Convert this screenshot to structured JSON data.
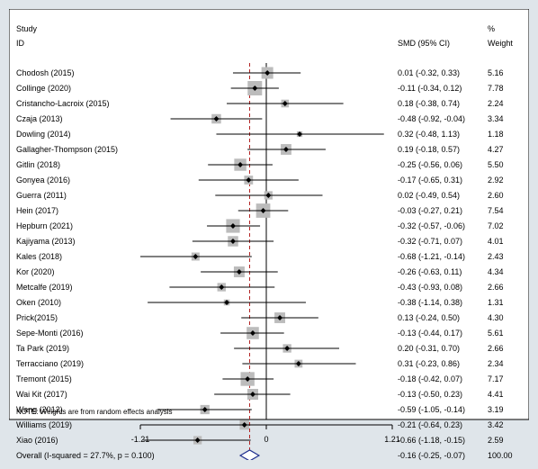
{
  "chart_data": {
    "type": "forest",
    "header": {
      "study_label_line1": "Study",
      "study_label_line2": "ID",
      "effect_label": "SMD (95% CI)",
      "weight_label_line1": "%",
      "weight_label_line2": "Weight"
    },
    "studies": [
      {
        "name": "Chodosh (2015)",
        "smd": 0.01,
        "lower": -0.32,
        "upper": 0.33,
        "ci_text": "0.01 (-0.32, 0.33)",
        "weight": 5.16,
        "weight_text": "5.16"
      },
      {
        "name": "Collinge (2020)",
        "smd": -0.11,
        "lower": -0.34,
        "upper": 0.12,
        "ci_text": "-0.11 (-0.34, 0.12)",
        "weight": 7.78,
        "weight_text": "7.78"
      },
      {
        "name": "Cristancho-Lacroix (2015)",
        "smd": 0.18,
        "lower": -0.38,
        "upper": 0.74,
        "ci_text": "0.18 (-0.38, 0.74)",
        "weight": 2.24,
        "weight_text": "2.24"
      },
      {
        "name": "Czaja (2013)",
        "smd": -0.48,
        "lower": -0.92,
        "upper": -0.04,
        "ci_text": "-0.48 (-0.92, -0.04)",
        "weight": 3.34,
        "weight_text": "3.34"
      },
      {
        "name": "Dowling (2014)",
        "smd": 0.32,
        "lower": -0.48,
        "upper": 1.13,
        "ci_text": "0.32 (-0.48, 1.13)",
        "weight": 1.18,
        "weight_text": "1.18"
      },
      {
        "name": "Gallagher-Thompson (2015)",
        "smd": 0.19,
        "lower": -0.18,
        "upper": 0.57,
        "ci_text": "0.19 (-0.18, 0.57)",
        "weight": 4.27,
        "weight_text": "4.27"
      },
      {
        "name": "Gitlin (2018)",
        "smd": -0.25,
        "lower": -0.56,
        "upper": 0.06,
        "ci_text": "-0.25 (-0.56, 0.06)",
        "weight": 5.5,
        "weight_text": "5.50"
      },
      {
        "name": "Gonyea (2016)",
        "smd": -0.17,
        "lower": -0.65,
        "upper": 0.31,
        "ci_text": "-0.17 (-0.65, 0.31)",
        "weight": 2.92,
        "weight_text": "2.92"
      },
      {
        "name": "Guerra (2011)",
        "smd": 0.02,
        "lower": -0.49,
        "upper": 0.54,
        "ci_text": "0.02 (-0.49, 0.54)",
        "weight": 2.6,
        "weight_text": "2.60"
      },
      {
        "name": "Hein (2017)",
        "smd": -0.03,
        "lower": -0.27,
        "upper": 0.21,
        "ci_text": "-0.03 (-0.27, 0.21)",
        "weight": 7.54,
        "weight_text": "7.54"
      },
      {
        "name": "Hepburn (2021)",
        "smd": -0.32,
        "lower": -0.57,
        "upper": -0.06,
        "ci_text": "-0.32 (-0.57, -0.06)",
        "weight": 7.02,
        "weight_text": "7.02"
      },
      {
        "name": "Kajiyama (2013)",
        "smd": -0.32,
        "lower": -0.71,
        "upper": 0.07,
        "ci_text": "-0.32 (-0.71, 0.07)",
        "weight": 4.01,
        "weight_text": "4.01"
      },
      {
        "name": "Kales (2018)",
        "smd": -0.68,
        "lower": -1.21,
        "upper": -0.14,
        "ci_text": "-0.68 (-1.21, -0.14)",
        "weight": 2.43,
        "weight_text": "2.43"
      },
      {
        "name": "Kor (2020)",
        "smd": -0.26,
        "lower": -0.63,
        "upper": 0.11,
        "ci_text": "-0.26 (-0.63, 0.11)",
        "weight": 4.34,
        "weight_text": "4.34"
      },
      {
        "name": "Metcalfe (2019)",
        "smd": -0.43,
        "lower": -0.93,
        "upper": 0.08,
        "ci_text": "-0.43 (-0.93, 0.08)",
        "weight": 2.66,
        "weight_text": "2.66"
      },
      {
        "name": "Oken (2010)",
        "smd": -0.38,
        "lower": -1.14,
        "upper": 0.38,
        "ci_text": "-0.38 (-1.14, 0.38)",
        "weight": 1.31,
        "weight_text": "1.31"
      },
      {
        "name": "Prick(2015)",
        "smd": 0.13,
        "lower": -0.24,
        "upper": 0.5,
        "ci_text": "0.13 (-0.24, 0.50)",
        "weight": 4.3,
        "weight_text": "4.30"
      },
      {
        "name": "Sepe-Monti (2016)",
        "smd": -0.13,
        "lower": -0.44,
        "upper": 0.17,
        "ci_text": "-0.13 (-0.44, 0.17)",
        "weight": 5.61,
        "weight_text": "5.61"
      },
      {
        "name": "Ta Park (2019)",
        "smd": 0.2,
        "lower": -0.31,
        "upper": 0.7,
        "ci_text": "0.20 (-0.31, 0.70)",
        "weight": 2.66,
        "weight_text": "2.66"
      },
      {
        "name": "Terracciano (2019)",
        "smd": 0.31,
        "lower": -0.23,
        "upper": 0.86,
        "ci_text": "0.31 (-0.23, 0.86)",
        "weight": 2.34,
        "weight_text": "2.34"
      },
      {
        "name": "Tremont (2015)",
        "smd": -0.18,
        "lower": -0.42,
        "upper": 0.07,
        "ci_text": "-0.18 (-0.42, 0.07)",
        "weight": 7.17,
        "weight_text": "7.17"
      },
      {
        "name": "Wai Kit (2017)",
        "smd": -0.13,
        "lower": -0.5,
        "upper": 0.23,
        "ci_text": "-0.13 (-0.50, 0.23)",
        "weight": 4.41,
        "weight_text": "4.41"
      },
      {
        "name": "Wang (2012)",
        "smd": -0.59,
        "lower": -1.05,
        "upper": -0.14,
        "ci_text": "-0.59 (-1.05, -0.14)",
        "weight": 3.19,
        "weight_text": "3.19"
      },
      {
        "name": "Williams (2019)",
        "smd": -0.21,
        "lower": -0.64,
        "upper": 0.23,
        "ci_text": "-0.21 (-0.64, 0.23)",
        "weight": 3.42,
        "weight_text": "3.42"
      },
      {
        "name": "Xiao (2016)",
        "smd": -0.66,
        "lower": -1.18,
        "upper": -0.15,
        "ci_text": "-0.66 (-1.18, -0.15)",
        "weight": 2.59,
        "weight_text": "2.59"
      }
    ],
    "overall": {
      "label": "Overall  (I-squared = 27.7%, p = 0.100)",
      "smd": -0.16,
      "lower": -0.25,
      "upper": -0.07,
      "ci_text": "-0.16 (-0.25, -0.07)",
      "weight_text": "100.00"
    },
    "note": "NOTE: Weights are from random effects analysis",
    "x_ticks": [
      {
        "value": -1.21,
        "label": "-1.21"
      },
      {
        "value": 0,
        "label": "0"
      },
      {
        "value": 1.21,
        "label": "1.21"
      }
    ],
    "xlim": [
      -1.21,
      1.21
    ],
    "colors": {
      "background": "#dfe5ea",
      "plot_background": "#ffffff",
      "weight_box": "#bcbcbc",
      "diamond": "#1f2f8f",
      "overall_line": "#b22222"
    }
  }
}
